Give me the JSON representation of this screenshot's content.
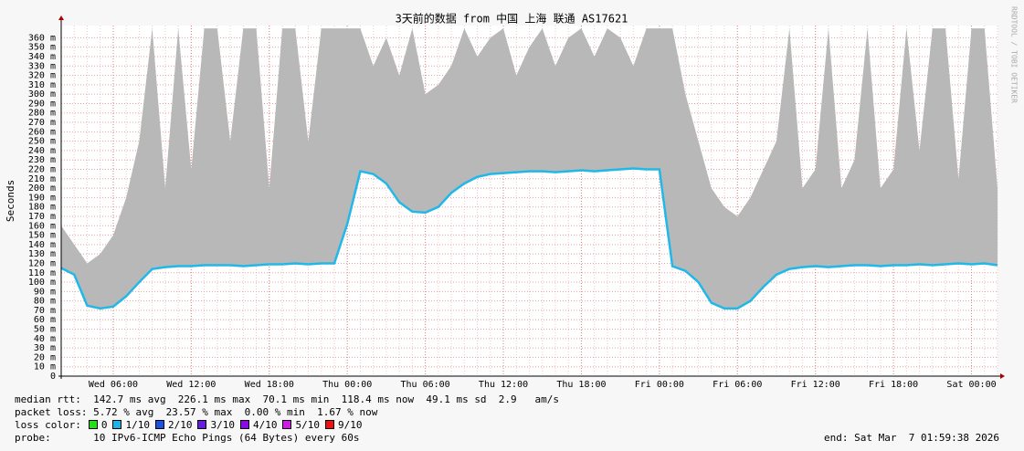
{
  "chart_data": {
    "type": "smokeline",
    "title": "3天前的数据 from  中国 上海 联通 AS17621",
    "y_label": "Seconds",
    "watermark": "RRDTOOL / TOBI OETIKER",
    "x": [
      2,
      3,
      4,
      5,
      6,
      7,
      8,
      9,
      10,
      11,
      12,
      13,
      14,
      15,
      16,
      17,
      18,
      19,
      20,
      21,
      22,
      23,
      24,
      25,
      26,
      27,
      28,
      29,
      30,
      31,
      32,
      33,
      34,
      35,
      36,
      37,
      38,
      39,
      40,
      41,
      42,
      43,
      44,
      45,
      46,
      47,
      48,
      49,
      50,
      51,
      52,
      53,
      54,
      55,
      56,
      57,
      58,
      59,
      60,
      61,
      62,
      63,
      64,
      65,
      66,
      67,
      68,
      69,
      70,
      71,
      72,
      73,
      74
    ],
    "median": [
      0.115,
      0.108,
      0.075,
      0.072,
      0.074,
      0.085,
      0.1,
      0.114,
      0.116,
      0.117,
      0.117,
      0.118,
      0.118,
      0.118,
      0.117,
      0.118,
      0.119,
      0.119,
      0.12,
      0.119,
      0.12,
      0.12,
      0.162,
      0.218,
      0.215,
      0.205,
      0.185,
      0.175,
      0.174,
      0.18,
      0.195,
      0.205,
      0.212,
      0.215,
      0.216,
      0.217,
      0.218,
      0.218,
      0.217,
      0.218,
      0.219,
      0.218,
      0.219,
      0.22,
      0.221,
      0.22,
      0.22,
      0.117,
      0.112,
      0.1,
      0.078,
      0.072,
      0.072,
      0.08,
      0.095,
      0.108,
      0.114,
      0.116,
      0.117,
      0.116,
      0.117,
      0.118,
      0.118,
      0.117,
      0.118,
      0.118,
      0.119,
      0.118,
      0.119,
      0.12,
      0.119,
      0.12,
      0.118
    ],
    "smoke_max": [
      0.16,
      0.14,
      0.12,
      0.13,
      0.15,
      0.19,
      0.25,
      0.37,
      0.2,
      0.37,
      0.22,
      0.37,
      0.37,
      0.25,
      0.37,
      0.37,
      0.2,
      0.37,
      0.37,
      0.25,
      0.37,
      0.37,
      0.37,
      0.37,
      0.33,
      0.36,
      0.32,
      0.37,
      0.3,
      0.31,
      0.33,
      0.37,
      0.34,
      0.36,
      0.37,
      0.32,
      0.35,
      0.37,
      0.33,
      0.36,
      0.37,
      0.34,
      0.37,
      0.36,
      0.33,
      0.37,
      0.37,
      0.37,
      0.3,
      0.25,
      0.2,
      0.18,
      0.17,
      0.19,
      0.22,
      0.25,
      0.37,
      0.2,
      0.22,
      0.37,
      0.2,
      0.23,
      0.37,
      0.2,
      0.22,
      0.37,
      0.24,
      0.37,
      0.37,
      0.21,
      0.37,
      0.37,
      0.2
    ],
    "line_color": "#20b8e8",
    "smoke_color": "#b8b8b8",
    "xlim": [
      2,
      74
    ],
    "xticks": [
      {
        "value": 6,
        "label": "Wed 06:00"
      },
      {
        "value": 12,
        "label": "Wed 12:00"
      },
      {
        "value": 18,
        "label": "Wed 18:00"
      },
      {
        "value": 24,
        "label": "Thu 00:00"
      },
      {
        "value": 30,
        "label": "Thu 06:00"
      },
      {
        "value": 36,
        "label": "Thu 12:00"
      },
      {
        "value": 42,
        "label": "Thu 18:00"
      },
      {
        "value": 48,
        "label": "Fri 00:00"
      },
      {
        "value": 54,
        "label": "Fri 06:00"
      },
      {
        "value": 60,
        "label": "Fri 12:00"
      },
      {
        "value": 66,
        "label": "Fri 18:00"
      },
      {
        "value": 72,
        "label": "Sat 00:00"
      }
    ],
    "ylim": [
      0,
      0.373
    ],
    "yticks": [
      0,
      {
        "value": 0.01,
        "label": "10 m"
      },
      {
        "value": 0.02,
        "label": "20 m"
      },
      {
        "value": 0.03,
        "label": "30 m"
      },
      {
        "value": 0.04,
        "label": "40 m"
      },
      {
        "value": 0.05,
        "label": "50 m"
      },
      {
        "value": 0.06,
        "label": "60 m"
      },
      {
        "value": 0.07,
        "label": "70 m"
      },
      {
        "value": 0.08,
        "label": "80 m"
      },
      {
        "value": 0.09,
        "label": "90 m"
      },
      {
        "value": 0.1,
        "label": "100 m"
      },
      {
        "value": 0.11,
        "label": "110 m"
      },
      {
        "value": 0.12,
        "label": "120 m"
      },
      {
        "value": 0.13,
        "label": "130 m"
      },
      {
        "value": 0.14,
        "label": "140 m"
      },
      {
        "value": 0.15,
        "label": "150 m"
      },
      {
        "value": 0.16,
        "label": "160 m"
      },
      {
        "value": 0.17,
        "label": "170 m"
      },
      {
        "value": 0.18,
        "label": "180 m"
      },
      {
        "value": 0.19,
        "label": "190 m"
      },
      {
        "value": 0.2,
        "label": "200 m"
      },
      {
        "value": 0.21,
        "label": "210 m"
      },
      {
        "value": 0.22,
        "label": "220 m"
      },
      {
        "value": 0.23,
        "label": "230 m"
      },
      {
        "value": 0.24,
        "label": "240 m"
      },
      {
        "value": 0.25,
        "label": "250 m"
      },
      {
        "value": 0.26,
        "label": "260 m"
      },
      {
        "value": 0.27,
        "label": "270 m"
      },
      {
        "value": 0.28,
        "label": "280 m"
      },
      {
        "value": 0.29,
        "label": "290 m"
      },
      {
        "value": 0.3,
        "label": "300 m"
      },
      {
        "value": 0.31,
        "label": "310 m"
      },
      {
        "value": 0.32,
        "label": "320 m"
      },
      {
        "value": 0.33,
        "label": "330 m"
      },
      {
        "value": 0.34,
        "label": "340 m"
      },
      {
        "value": 0.35,
        "label": "350 m"
      },
      {
        "value": 0.36,
        "label": "360 m"
      }
    ],
    "grid": true
  },
  "footer": {
    "rtt": "median rtt:  142.7 ms avg  226.1 ms max  70.1 ms min  118.4 ms now  49.1 ms sd  2.9   am/s",
    "loss": "packet loss: 5.72 % avg  23.57 % max  0.00 % min  1.67 % now",
    "loss_label": "loss color:",
    "loss_colors": [
      {
        "label": "0",
        "color": "#26e016"
      },
      {
        "label": "1/10",
        "color": "#1ab4e6"
      },
      {
        "label": "2/10",
        "color": "#1a50e6"
      },
      {
        "label": "3/10",
        "color": "#6a1ae6"
      },
      {
        "label": "4/10",
        "color": "#8a0ae6"
      },
      {
        "label": "5/10",
        "color": "#d21ae6"
      },
      {
        "label": "9/10",
        "color": "#f01010"
      }
    ],
    "probe": "probe:       10 IPv6-ICMP Echo Pings (64 Bytes) every 60s",
    "end": "end: Sat Mar  7 01:59:38 2026"
  }
}
